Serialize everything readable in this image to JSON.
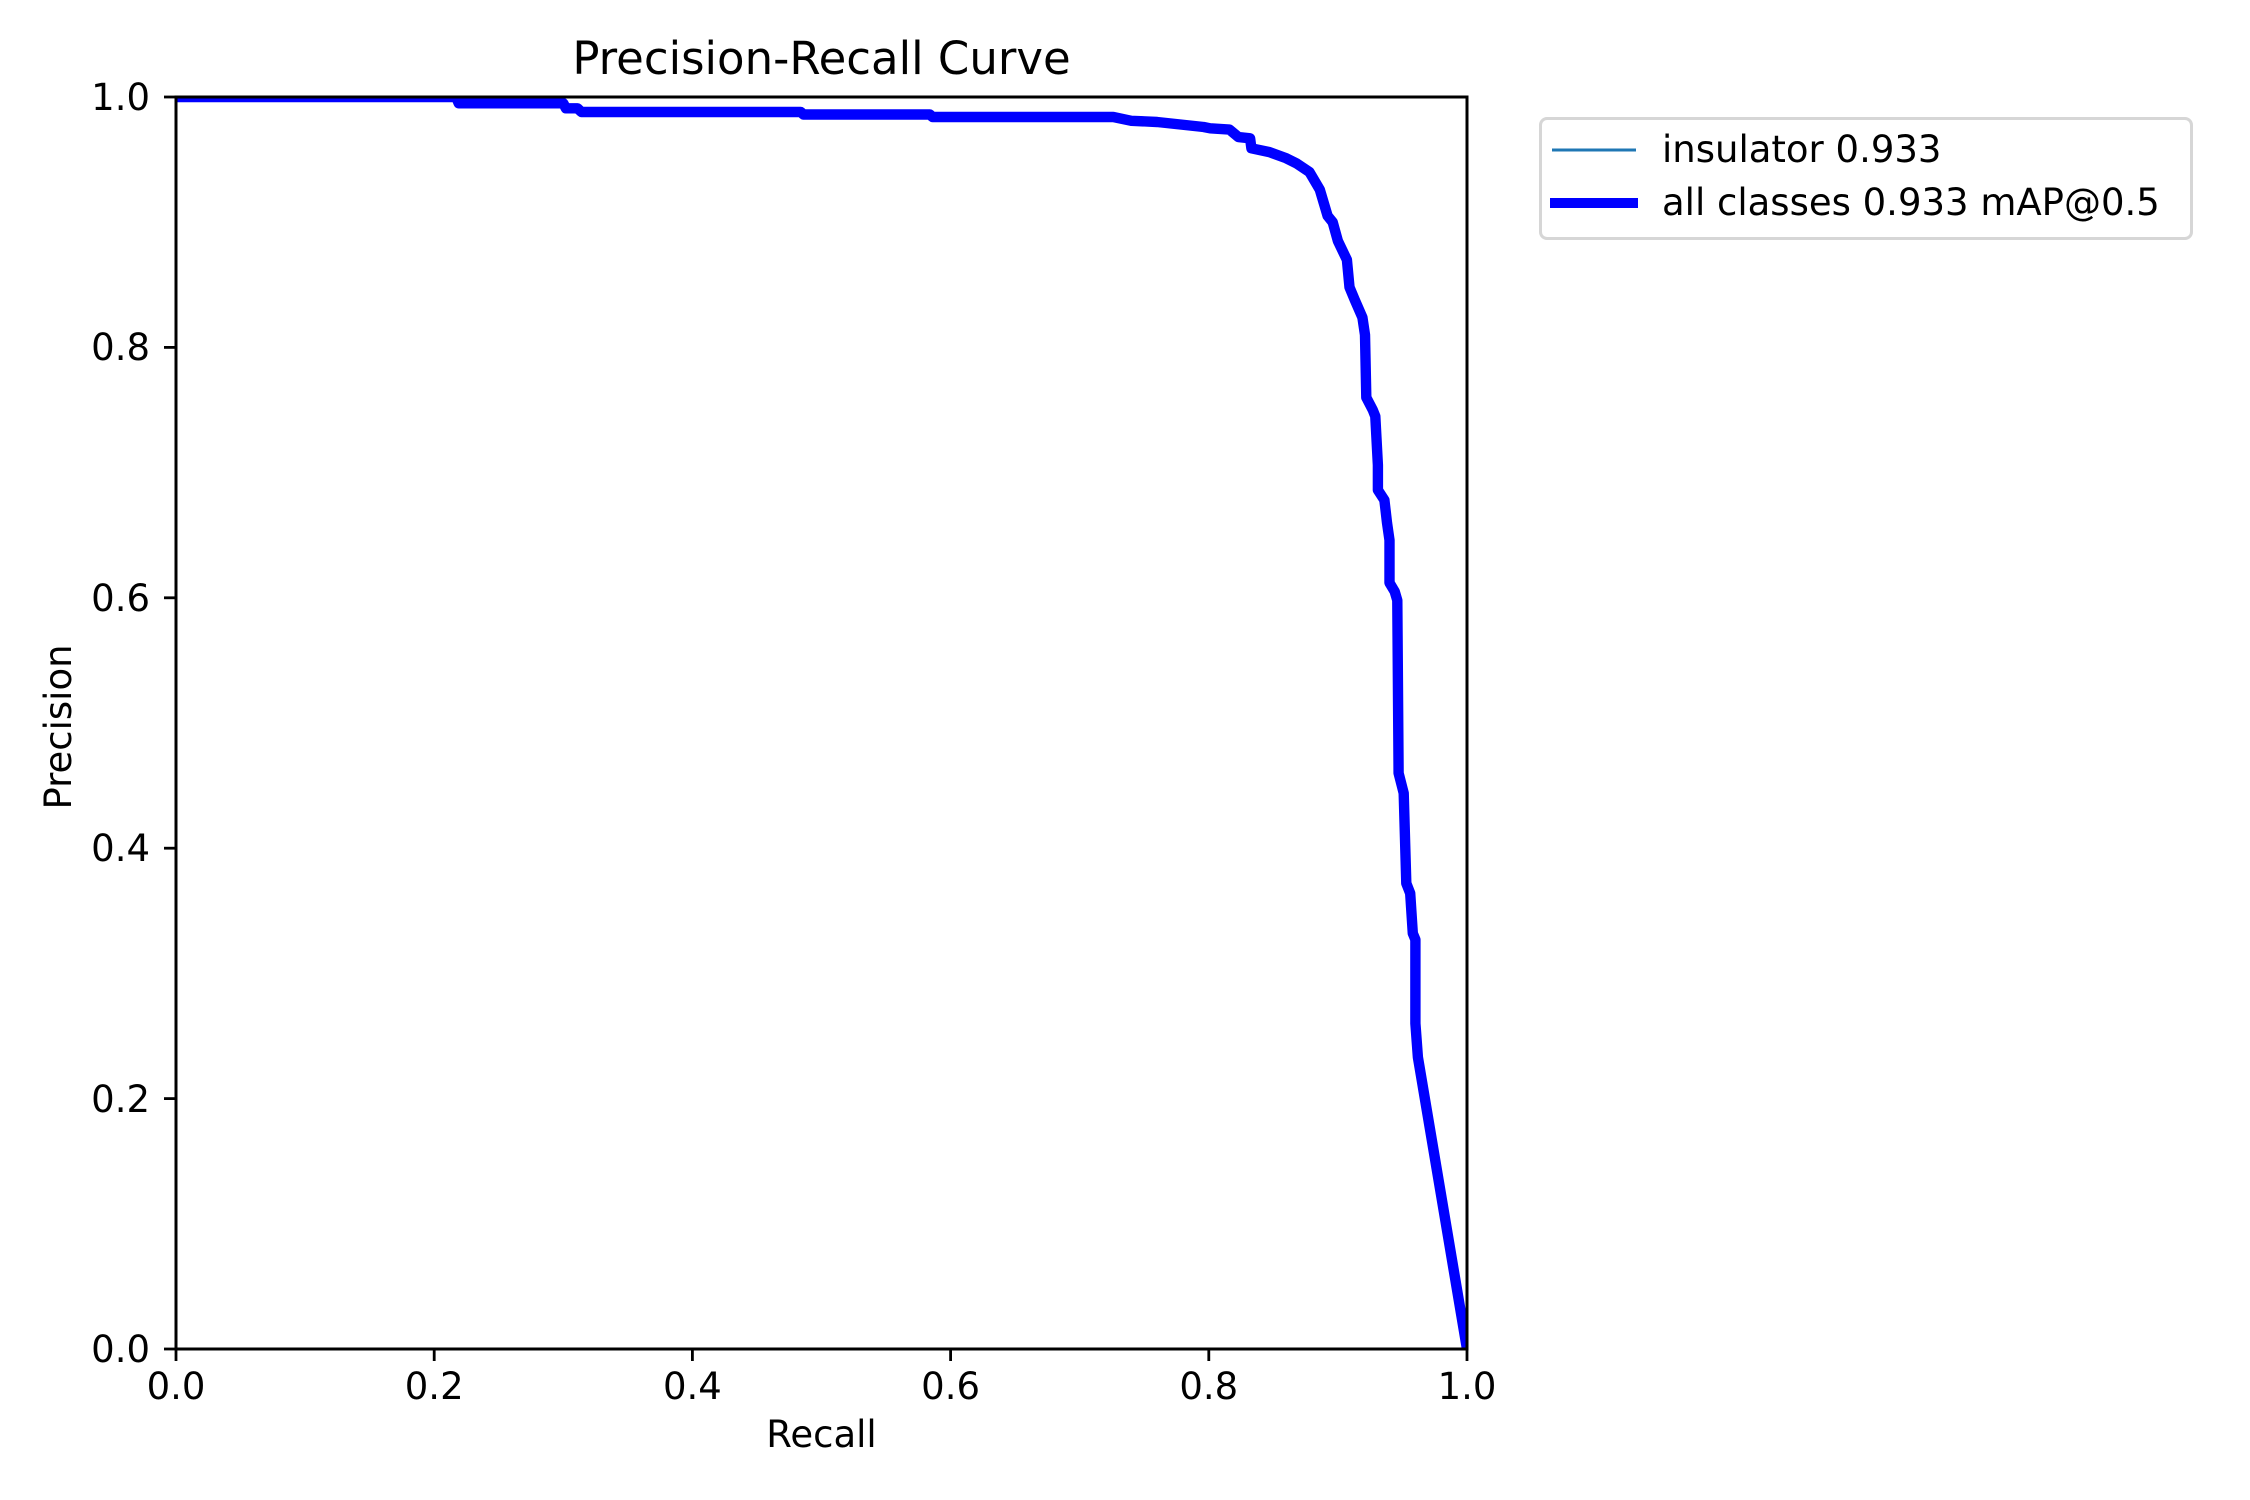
{
  "chart_data": {
    "type": "line",
    "title": "Precision-Recall Curve",
    "xlabel": "Recall",
    "ylabel": "Precision",
    "xlim": [
      0.0,
      1.0
    ],
    "ylim": [
      0.0,
      1.0
    ],
    "xticks": [
      "0.0",
      "0.2",
      "0.4",
      "0.6",
      "0.8",
      "1.0"
    ],
    "yticks": [
      "0.0",
      "0.2",
      "0.4",
      "0.6",
      "0.8",
      "1.0"
    ],
    "grid": false,
    "legend_position": "outside upper left (right of axes)",
    "legend": [
      "insulator 0.933",
      "all classes 0.933 mAP@0.5"
    ],
    "series": [
      {
        "name": "insulator 0.933",
        "color": "#1f77b4",
        "linewidth": 1,
        "x": [
          0.0,
          0.217,
          0.219,
          0.3,
          0.302,
          0.311,
          0.314,
          0.484,
          0.486,
          0.584,
          0.586,
          0.726,
          0.74,
          0.76,
          0.778,
          0.796,
          0.801,
          0.816,
          0.823,
          0.832,
          0.833,
          0.847,
          0.86,
          0.868,
          0.878,
          0.886,
          0.892,
          0.896,
          0.9,
          0.907,
          0.909,
          0.913,
          0.919,
          0.921,
          0.922,
          0.927,
          0.929,
          0.931,
          0.931,
          0.936,
          0.938,
          0.94,
          0.94,
          0.944,
          0.946,
          0.947,
          0.951,
          0.953,
          0.956,
          0.958,
          0.96,
          0.96,
          0.962,
          1.0
        ],
        "y": [
          1.0,
          1.0,
          0.995,
          0.995,
          0.991,
          0.991,
          0.988,
          0.988,
          0.986,
          0.986,
          0.984,
          0.984,
          0.981,
          0.98,
          0.978,
          0.976,
          0.975,
          0.974,
          0.968,
          0.967,
          0.959,
          0.956,
          0.951,
          0.947,
          0.94,
          0.926,
          0.905,
          0.9,
          0.885,
          0.87,
          0.848,
          0.838,
          0.824,
          0.81,
          0.76,
          0.75,
          0.745,
          0.706,
          0.686,
          0.678,
          0.66,
          0.646,
          0.612,
          0.605,
          0.598,
          0.46,
          0.444,
          0.372,
          0.364,
          0.332,
          0.327,
          0.26,
          0.233,
          0.0
        ]
      },
      {
        "name": "all classes 0.933 mAP@0.5",
        "color": "#0000ff",
        "linewidth": 3,
        "x": [
          0.0,
          0.217,
          0.219,
          0.3,
          0.302,
          0.311,
          0.314,
          0.484,
          0.486,
          0.584,
          0.586,
          0.726,
          0.74,
          0.76,
          0.778,
          0.796,
          0.801,
          0.816,
          0.823,
          0.832,
          0.833,
          0.847,
          0.86,
          0.868,
          0.878,
          0.886,
          0.892,
          0.896,
          0.9,
          0.907,
          0.909,
          0.913,
          0.919,
          0.921,
          0.922,
          0.927,
          0.929,
          0.931,
          0.931,
          0.936,
          0.938,
          0.94,
          0.94,
          0.944,
          0.946,
          0.947,
          0.951,
          0.953,
          0.956,
          0.958,
          0.96,
          0.96,
          0.962,
          1.0
        ],
        "y": [
          1.0,
          1.0,
          0.995,
          0.995,
          0.991,
          0.991,
          0.988,
          0.988,
          0.986,
          0.986,
          0.984,
          0.984,
          0.981,
          0.98,
          0.978,
          0.976,
          0.975,
          0.974,
          0.968,
          0.967,
          0.959,
          0.956,
          0.951,
          0.947,
          0.94,
          0.926,
          0.905,
          0.9,
          0.885,
          0.87,
          0.848,
          0.838,
          0.824,
          0.81,
          0.76,
          0.75,
          0.745,
          0.706,
          0.686,
          0.678,
          0.66,
          0.646,
          0.612,
          0.605,
          0.598,
          0.46,
          0.444,
          0.372,
          0.364,
          0.332,
          0.327,
          0.26,
          0.233,
          0.0
        ]
      }
    ]
  },
  "legend": {
    "items": [
      {
        "label": "insulator 0.933",
        "color": "#1f77b4"
      },
      {
        "label": "all classes 0.933 mAP@0.5",
        "color": "#0000ff"
      }
    ]
  }
}
